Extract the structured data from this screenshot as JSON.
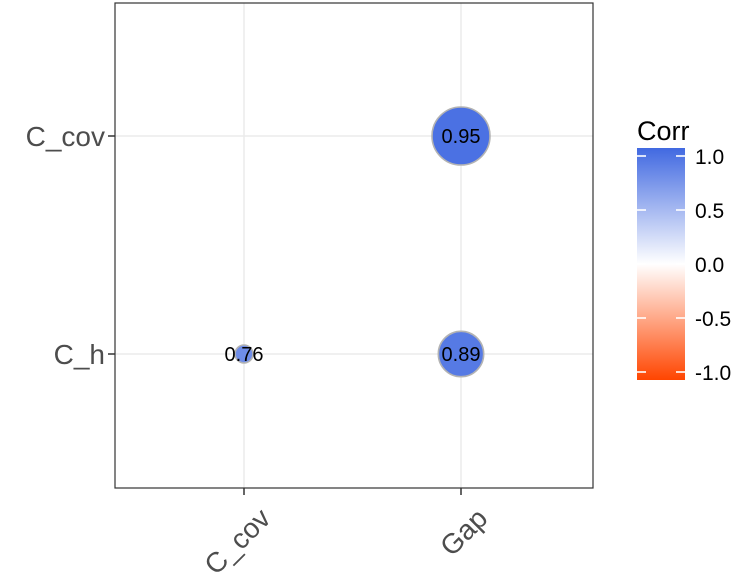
{
  "chart_data": {
    "type": "scatter",
    "subtype": "correlation-matrix",
    "x_categories": [
      "C_cov",
      "Gap"
    ],
    "y_categories": [
      "C_h",
      "C_cov"
    ],
    "cells": [
      {
        "x": "C_cov",
        "y": "C_h",
        "value": 0.76,
        "label": "0.76"
      },
      {
        "x": "Gap",
        "y": "C_h",
        "value": 0.89,
        "label": "0.89"
      },
      {
        "x": "Gap",
        "y": "C_cov",
        "value": 0.95,
        "label": "0.95"
      }
    ],
    "legend": {
      "title": "Corr",
      "placement": "right",
      "ticks": [
        1.0,
        0.5,
        0.0,
        -0.5,
        -1.0
      ],
      "tick_labels": [
        "1.0",
        "0.5",
        "0.0",
        "-0.5",
        "-1.0"
      ],
      "range": [
        -1,
        1
      ],
      "colors": {
        "high": "#4169E1",
        "mid": "#FFFFFF",
        "low": "#FF4500"
      }
    },
    "grid": true,
    "colors": {
      "grid": "#ebebeb",
      "panel_border": "#333333",
      "point_outline": "#b3b3b3"
    }
  }
}
